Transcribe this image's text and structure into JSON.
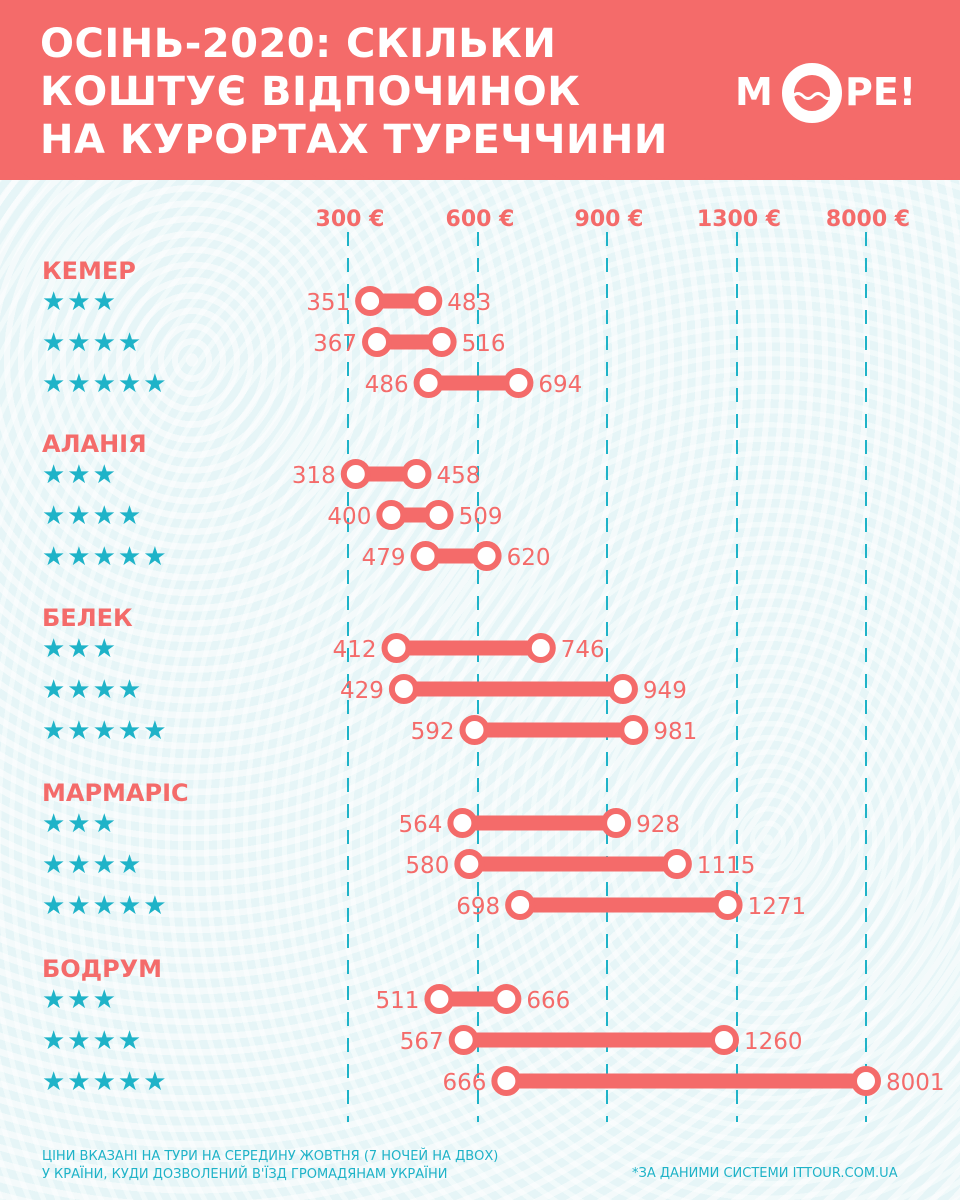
{
  "header": {
    "title_lines": [
      "ОСІНЬ-2020: СКІЛЬКИ",
      "КОШТУЄ ВІДПОЧИНОК",
      "НА КУРОРТАХ ТУРЕЧЧИНИ"
    ],
    "logo_left": "М",
    "logo_right": "РЕ!"
  },
  "colors": {
    "accent": "#f46b6a",
    "cyan": "#1fb3c8",
    "background": "#e6f5f7"
  },
  "chart_data": {
    "type": "range-bar",
    "axis_ticks": [
      "300 €",
      "600 €",
      "900 €",
      "1300 €",
      "8000 €"
    ],
    "groups": [
      {
        "name": "КЕМЕР",
        "rows": [
          {
            "stars": "★★★",
            "min": 351,
            "max": 483
          },
          {
            "stars": "★★★★",
            "min": 367,
            "max": 516
          },
          {
            "stars": "★★★★★",
            "min": 486,
            "max": 694
          }
        ]
      },
      {
        "name": "АЛАНІЯ",
        "rows": [
          {
            "stars": "★★★",
            "min": 318,
            "max": 458
          },
          {
            "stars": "★★★★",
            "min": 400,
            "max": 509
          },
          {
            "stars": "★★★★★",
            "min": 479,
            "max": 620
          }
        ]
      },
      {
        "name": "БЕЛЕК",
        "rows": [
          {
            "stars": "★★★",
            "min": 412,
            "max": 746
          },
          {
            "stars": "★★★★",
            "min": 429,
            "max": 949
          },
          {
            "stars": "★★★★★",
            "min": 592,
            "max": 981
          }
        ]
      },
      {
        "name": "МАРМАРІС",
        "rows": [
          {
            "stars": "★★★",
            "min": 564,
            "max": 928
          },
          {
            "stars": "★★★★",
            "min": 580,
            "max": 1115
          },
          {
            "stars": "★★★★★",
            "min": 698,
            "max": 1271
          }
        ]
      },
      {
        "name": "БОДРУМ",
        "rows": [
          {
            "stars": "★★★",
            "min": 511,
            "max": 666
          },
          {
            "stars": "★★★★",
            "min": 567,
            "max": 1260
          },
          {
            "stars": "★★★★★",
            "min": 666,
            "max": 8001
          }
        ]
      }
    ]
  },
  "footer": {
    "note_lines": [
      "ЦІНИ ВКАЗАНІ НА ТУРИ НА СЕРЕДИНУ ЖОВТНЯ (7 НОЧЕЙ НА ДВОХ)",
      "У КРАЇНИ, КУДИ ДОЗВОЛЕНИЙ В'ЇЗД ГРОМАДЯНАМ УКРАЇНИ"
    ],
    "source": "*ЗА ДАНИМИ СИСТЕМИ ITTOUR.COM.UA"
  }
}
